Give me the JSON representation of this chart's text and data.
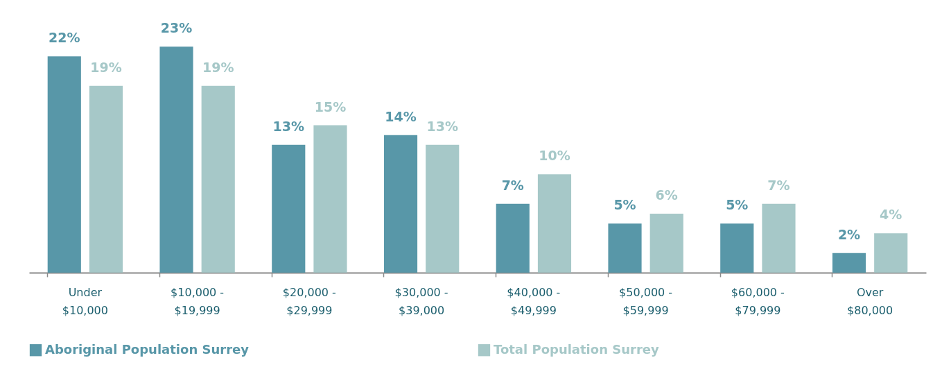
{
  "chart_data": {
    "type": "bar",
    "categories": [
      "Under $10,000",
      "$10,000 - $19,999",
      "$20,000 - $29,999",
      "$30,000 - $39,000",
      "$40,000 - $49,999",
      "$50,000 - $59,999",
      "$60,000 - $79,999",
      "Over $80,000"
    ],
    "series": [
      {
        "name": "Aboriginal Population Surrey",
        "color": "#5897a8",
        "values": [
          22,
          23,
          13,
          14,
          7,
          5,
          5,
          2
        ],
        "value_labels": [
          "22%",
          "23%",
          "13%",
          "14%",
          "7%",
          "5%",
          "5%",
          "2%"
        ]
      },
      {
        "name": "Total Population Surrey",
        "color": "#a6c8c8",
        "values": [
          19,
          19,
          15,
          13,
          10,
          6,
          7,
          4
        ],
        "value_labels": [
          "19%",
          "19%",
          "15%",
          "13%",
          "10%",
          "6%",
          "7%",
          "4%"
        ]
      }
    ],
    "legend": "bottom"
  }
}
